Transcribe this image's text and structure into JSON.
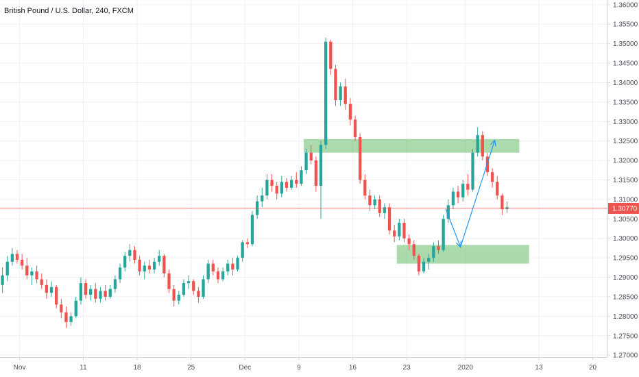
{
  "colors": {
    "up": "#26a69a",
    "down": "#ef5350",
    "zone": "#66bb6a",
    "arrow": "#2196f3",
    "price_line": "#ef5350",
    "grid": "#eef0f3",
    "axis_text": "#4a4e59"
  },
  "chart_data": {
    "type": "candlestick",
    "title": "British Pound / U.S. Dollar, 240, FXCM",
    "ylim": [
      1.2695,
      1.3612
    ],
    "xlim": [
      0,
      124
    ],
    "y_ticks": [
      "1.27000",
      "1.27500",
      "1.28000",
      "1.28500",
      "1.29000",
      "1.29500",
      "1.30000",
      "1.30500",
      "1.31000",
      "1.31500",
      "1.32000",
      "1.32500",
      "1.33000",
      "1.33500",
      "1.34000",
      "1.34500",
      "1.35000",
      "1.35500",
      "1.36000"
    ],
    "x_ticks": [
      {
        "label": "Nov",
        "pos": 4
      },
      {
        "label": "11",
        "pos": 17
      },
      {
        "label": "18",
        "pos": 28
      },
      {
        "label": "25",
        "pos": 39
      },
      {
        "label": "Dec",
        "pos": 50
      },
      {
        "label": "9",
        "pos": 61
      },
      {
        "label": "16",
        "pos": 72
      },
      {
        "label": "23",
        "pos": 83
      },
      {
        "label": "2020",
        "pos": 95
      },
      {
        "label": "13",
        "pos": 110
      },
      {
        "label": "20",
        "pos": 121
      }
    ],
    "last_price": 1.3077,
    "last_price_label": "1.30770",
    "candles": [
      [
        1.288,
        1.2925,
        1.286,
        1.2905
      ],
      [
        1.2905,
        1.2955,
        1.289,
        1.294
      ],
      [
        1.294,
        1.2975,
        1.293,
        1.296
      ],
      [
        1.296,
        1.297,
        1.2935,
        1.2945
      ],
      [
        1.2945,
        1.296,
        1.292,
        1.293
      ],
      [
        1.293,
        1.295,
        1.2895,
        1.2905
      ],
      [
        1.2905,
        1.2925,
        1.288,
        1.2915
      ],
      [
        1.2915,
        1.293,
        1.2885,
        1.2895
      ],
      [
        1.2895,
        1.291,
        1.287,
        1.288
      ],
      [
        1.288,
        1.2895,
        1.2845,
        1.286
      ],
      [
        1.286,
        1.289,
        1.285,
        1.2875
      ],
      [
        1.2875,
        1.288,
        1.282,
        1.283
      ],
      [
        1.283,
        1.2845,
        1.2795,
        1.281
      ],
      [
        1.281,
        1.2825,
        1.277,
        1.2785
      ],
      [
        1.2785,
        1.281,
        1.2775,
        1.28
      ],
      [
        1.28,
        1.285,
        1.2795,
        1.284
      ],
      [
        1.284,
        1.29,
        1.283,
        1.2885
      ],
      [
        1.2885,
        1.2895,
        1.2845,
        1.2855
      ],
      [
        1.2855,
        1.288,
        1.284,
        1.287
      ],
      [
        1.287,
        1.2885,
        1.2835,
        1.2845
      ],
      [
        1.2845,
        1.2875,
        1.2835,
        1.2865
      ],
      [
        1.2865,
        1.288,
        1.284,
        1.285
      ],
      [
        1.285,
        1.288,
        1.2845,
        1.287
      ],
      [
        1.287,
        1.2905,
        1.286,
        1.2895
      ],
      [
        1.2895,
        1.2935,
        1.2885,
        1.2925
      ],
      [
        1.2925,
        1.2965,
        1.2915,
        1.2955
      ],
      [
        1.2955,
        1.2985,
        1.294,
        1.297
      ],
      [
        1.297,
        1.298,
        1.2935,
        1.2945
      ],
      [
        1.2945,
        1.2955,
        1.2905,
        1.2915
      ],
      [
        1.2915,
        1.294,
        1.2895,
        1.293
      ],
      [
        1.293,
        1.2945,
        1.291,
        1.292
      ],
      [
        1.292,
        1.295,
        1.291,
        1.294
      ],
      [
        1.294,
        1.297,
        1.293,
        1.2955
      ],
      [
        1.2955,
        1.296,
        1.29,
        1.291
      ],
      [
        1.291,
        1.292,
        1.286,
        1.287
      ],
      [
        1.287,
        1.288,
        1.2825,
        1.284
      ],
      [
        1.284,
        1.2865,
        1.283,
        1.2855
      ],
      [
        1.2855,
        1.2895,
        1.285,
        1.2885
      ],
      [
        1.2885,
        1.2905,
        1.287,
        1.289
      ],
      [
        1.289,
        1.2895,
        1.2855,
        1.2865
      ],
      [
        1.2865,
        1.2875,
        1.2835,
        1.285
      ],
      [
        1.285,
        1.2905,
        1.2845,
        1.2895
      ],
      [
        1.2895,
        1.2945,
        1.2885,
        1.2935
      ],
      [
        1.2935,
        1.2945,
        1.2905,
        1.2915
      ],
      [
        1.2915,
        1.2925,
        1.2885,
        1.2895
      ],
      [
        1.2895,
        1.2925,
        1.289,
        1.2915
      ],
      [
        1.2915,
        1.2945,
        1.2905,
        1.2935
      ],
      [
        1.2935,
        1.295,
        1.2905,
        1.292
      ],
      [
        1.292,
        1.2955,
        1.2915,
        1.295
      ],
      [
        1.295,
        1.2995,
        1.294,
        1.299
      ],
      [
        1.299,
        1.3,
        1.2975,
        1.2985
      ],
      [
        1.2985,
        1.307,
        1.298,
        1.306
      ],
      [
        1.306,
        1.311,
        1.305,
        1.3095
      ],
      [
        1.3095,
        1.313,
        1.308,
        1.311
      ],
      [
        1.311,
        1.3165,
        1.31,
        1.315
      ],
      [
        1.315,
        1.3165,
        1.312,
        1.3135
      ],
      [
        1.3135,
        1.3145,
        1.31,
        1.3115
      ],
      [
        1.3115,
        1.316,
        1.3105,
        1.3145
      ],
      [
        1.3145,
        1.3155,
        1.312,
        1.313
      ],
      [
        1.313,
        1.316,
        1.3125,
        1.315
      ],
      [
        1.315,
        1.317,
        1.313,
        1.314
      ],
      [
        1.314,
        1.3185,
        1.3135,
        1.3175
      ],
      [
        1.3175,
        1.323,
        1.3165,
        1.322
      ],
      [
        1.322,
        1.324,
        1.319,
        1.32
      ],
      [
        1.32,
        1.321,
        1.312,
        1.3135
      ],
      [
        1.3135,
        1.325,
        1.305,
        1.324
      ],
      [
        1.324,
        1.3515,
        1.323,
        1.3505
      ],
      [
        1.3505,
        1.351,
        1.342,
        1.3435
      ],
      [
        1.3435,
        1.3445,
        1.334,
        1.3355
      ],
      [
        1.3355,
        1.34,
        1.334,
        1.339
      ],
      [
        1.339,
        1.341,
        1.333,
        1.3345
      ],
      [
        1.3345,
        1.336,
        1.329,
        1.3305
      ],
      [
        1.3305,
        1.3315,
        1.325,
        1.326
      ],
      [
        1.326,
        1.327,
        1.314,
        1.315
      ],
      [
        1.315,
        1.3165,
        1.31,
        1.311
      ],
      [
        1.311,
        1.3125,
        1.307,
        1.3085
      ],
      [
        1.3085,
        1.311,
        1.3075,
        1.31
      ],
      [
        1.31,
        1.311,
        1.3055,
        1.3065
      ],
      [
        1.3065,
        1.309,
        1.305,
        1.308
      ],
      [
        1.308,
        1.309,
        1.301,
        1.302
      ],
      [
        1.302,
        1.3035,
        1.299,
        1.3005
      ],
      [
        1.3005,
        1.305,
        1.2995,
        1.304
      ],
      [
        1.304,
        1.305,
        1.299,
        1.3
      ],
      [
        1.3,
        1.301,
        1.297,
        1.2985
      ],
      [
        1.2985,
        1.2995,
        1.2945,
        1.2955
      ],
      [
        1.2955,
        1.296,
        1.2905,
        1.2915
      ],
      [
        1.2915,
        1.295,
        1.291,
        1.294
      ],
      [
        1.294,
        1.296,
        1.292,
        1.295
      ],
      [
        1.295,
        1.299,
        1.294,
        1.298
      ],
      [
        1.298,
        1.2995,
        1.296,
        1.297
      ],
      [
        1.297,
        1.306,
        1.2965,
        1.305
      ],
      [
        1.305,
        1.31,
        1.304,
        1.3085
      ],
      [
        1.3085,
        1.313,
        1.3075,
        1.312
      ],
      [
        1.312,
        1.3135,
        1.309,
        1.3105
      ],
      [
        1.3105,
        1.315,
        1.3095,
        1.314
      ],
      [
        1.314,
        1.3165,
        1.311,
        1.3125
      ],
      [
        1.3125,
        1.323,
        1.312,
        1.322
      ],
      [
        1.322,
        1.3285,
        1.321,
        1.3265
      ],
      [
        1.3265,
        1.3275,
        1.32,
        1.321
      ],
      [
        1.321,
        1.322,
        1.316,
        1.317
      ],
      [
        1.317,
        1.318,
        1.313,
        1.3145
      ],
      [
        1.3145,
        1.316,
        1.31,
        1.311
      ],
      [
        1.311,
        1.3115,
        1.306,
        1.3075
      ],
      [
        1.3075,
        1.3095,
        1.3065,
        1.308
      ]
    ],
    "zones": [
      {
        "from_pos": 62,
        "to_pos": 106,
        "low": 1.322,
        "high": 1.3255
      },
      {
        "from_pos": 81,
        "to_pos": 108,
        "low": 1.2935,
        "high": 1.2983
      }
    ],
    "arrows": [
      {
        "points": [
          [
            91,
            1.3075
          ],
          [
            94,
            1.2978
          ],
          [
            101,
            1.3252
          ]
        ]
      }
    ]
  }
}
